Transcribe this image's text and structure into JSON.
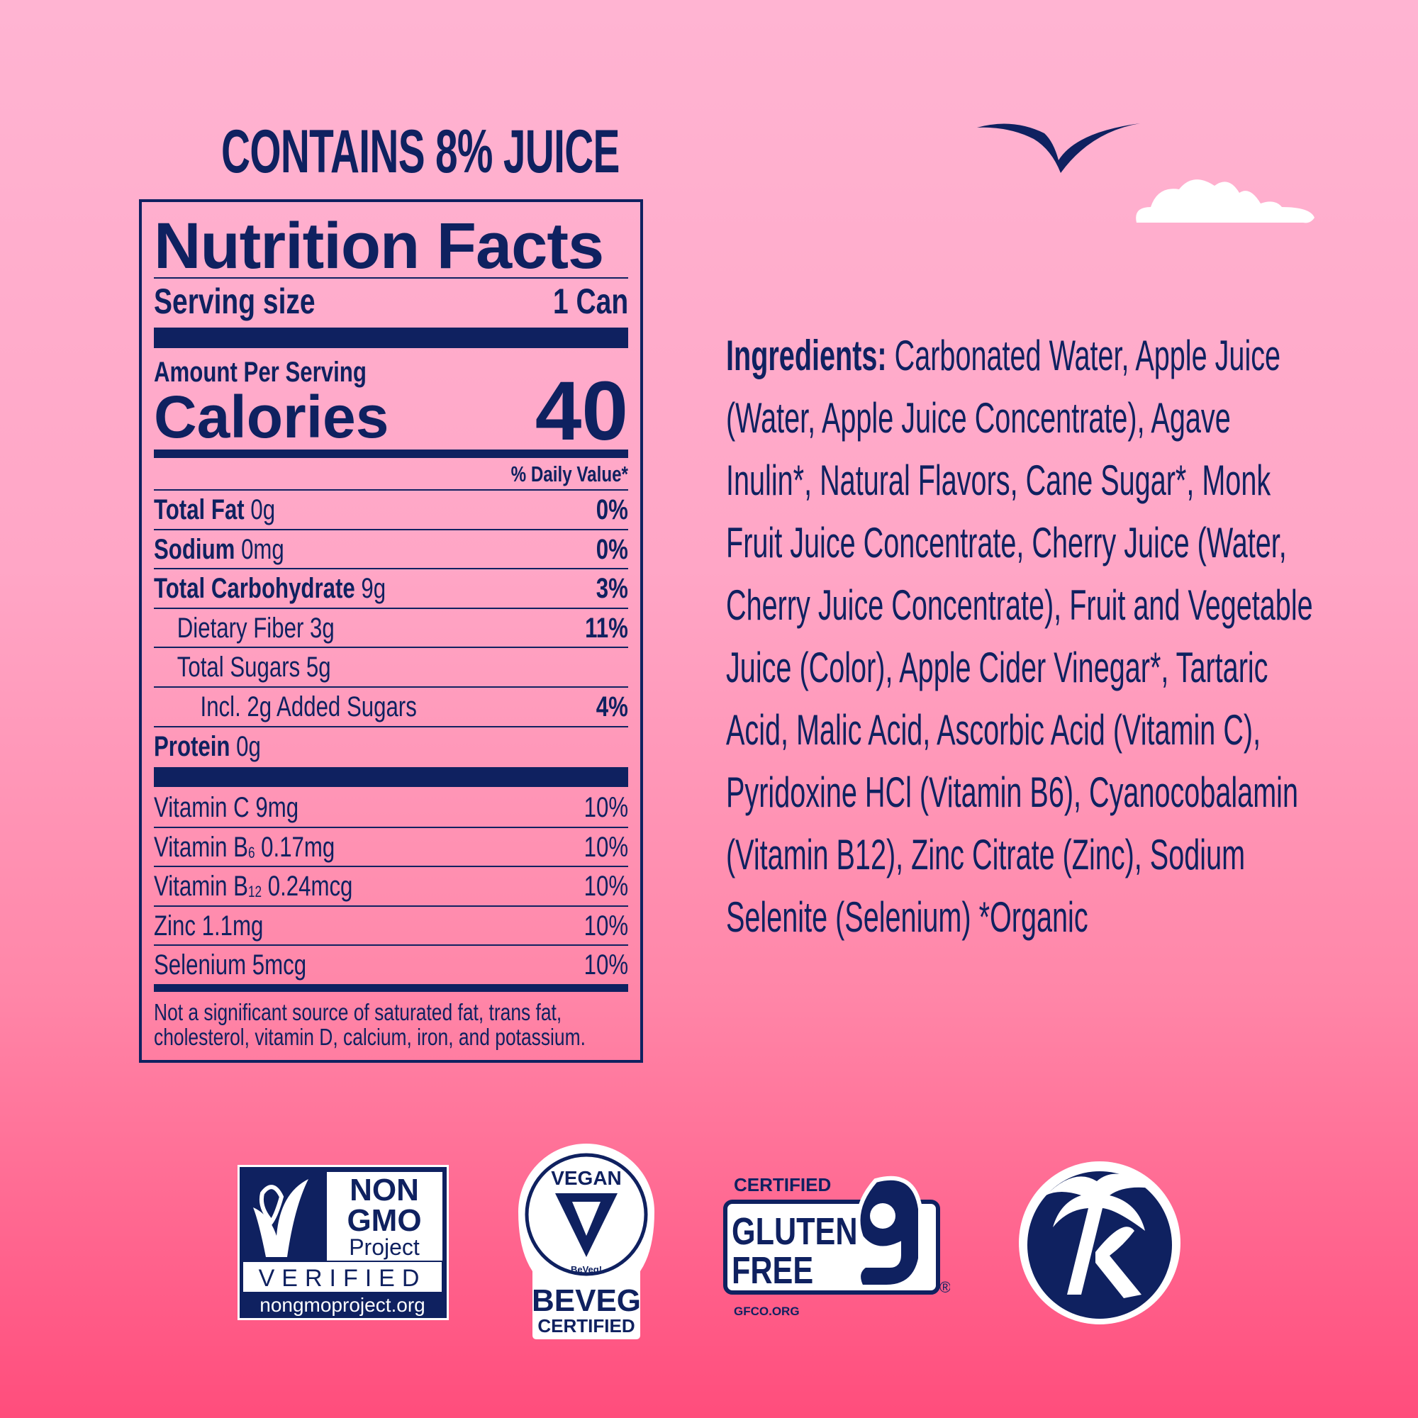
{
  "header": {
    "juice_claim": "CONTAINS 8% JUICE"
  },
  "nutrition": {
    "title": "Nutrition Facts",
    "serving_label": "Serving size",
    "serving_value": "1 Can",
    "amount_per_serving": "Amount Per Serving",
    "calories_label": "Calories",
    "calories_value": "40",
    "daily_value_header": "% Daily Value*",
    "nutrients": [
      {
        "name": "Total Fat",
        "amount": "0g",
        "dv": "0%",
        "bold": true,
        "indent": 0
      },
      {
        "name": "Sodium",
        "amount": "0mg",
        "dv": "0%",
        "bold": true,
        "indent": 0
      },
      {
        "name": "Total Carbohydrate",
        "amount": "9g",
        "dv": "3%",
        "bold": true,
        "indent": 0
      },
      {
        "name": "Dietary Fiber",
        "amount": "3g",
        "dv": "11%",
        "bold": false,
        "indent": 1
      },
      {
        "name": "Total Sugars",
        "amount": "5g",
        "dv": "",
        "bold": false,
        "indent": 1
      },
      {
        "name": "Incl. 2g Added Sugars",
        "amount": "",
        "dv": "4%",
        "bold": false,
        "indent": 2
      },
      {
        "name": "Protein",
        "amount": "0g",
        "dv": "",
        "bold": true,
        "indent": 0
      }
    ],
    "vitamins": [
      {
        "name": "Vitamin C",
        "sub": "",
        "amount": "9mg",
        "dv": "10%"
      },
      {
        "name": "Vitamin B",
        "sub": "6",
        "amount": "0.17mg",
        "dv": "10%"
      },
      {
        "name": "Vitamin B",
        "sub": "12",
        "amount": "0.24mcg",
        "dv": "10%"
      },
      {
        "name": "Zinc",
        "sub": "",
        "amount": "1.1mg",
        "dv": "10%"
      },
      {
        "name": "Selenium",
        "sub": "",
        "amount": "5mcg",
        "dv": "10%"
      }
    ],
    "footnote_lines": [
      "Not a significant source of saturated fat, trans fat,",
      "cholesterol, vitamin D, calcium, iron, and potassium."
    ]
  },
  "ingredients": {
    "label": "Ingredients:",
    "lines": [
      " Carbonated Water, Apple Juice",
      "(Water, Apple Juice Concentrate), Agave",
      "Inulin*, Natural Flavors, Cane Sugar*, Monk",
      "Fruit Juice Concentrate, Cherry Juice (Water,",
      "Cherry Juice Concentrate), Fruit and Vegetable",
      "Juice (Color), Apple Cider Vinegar*, Tartaric",
      "Acid, Malic Acid, Ascorbic Acid (Vitamin C),",
      "Pyridoxine HCl (Vitamin B6), Cyanocobalamin",
      "(Vitamin B12), Zinc Citrate (Zinc), Sodium",
      "Selenite (Selenium)  *Organic"
    ]
  },
  "logos": {
    "nongmo": {
      "line1": "NON",
      "line2": "GMO",
      "line3": "Project",
      "verified": "VERIFIED",
      "url": "nongmoproject.org"
    },
    "beveg": {
      "top": "VEGAN",
      "small": "BeVeg!",
      "brand": "BEVEG",
      "certified": "CERTIFIED"
    },
    "gluten": {
      "certified": "CERTIFIED",
      "line1": "GLUTEN",
      "line2": "FREE",
      "url": "GFCO.ORG",
      "reg": "®"
    },
    "brand": {
      "letter": "K"
    }
  },
  "colors": {
    "navy": "#0f2160",
    "bg_top": "#ffb4d2",
    "bg_bottom": "#ff4d7c",
    "white": "#ffffff"
  }
}
